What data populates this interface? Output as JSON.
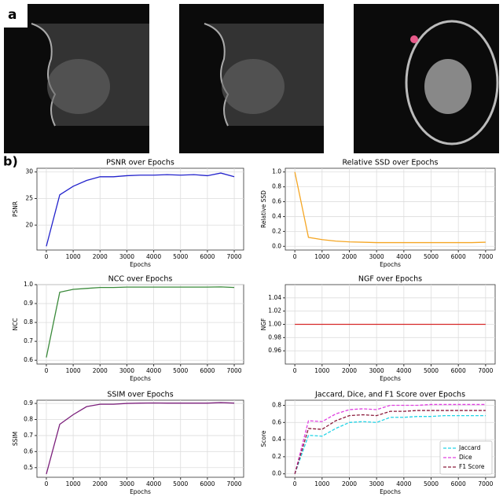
{
  "panel_labels": [
    "a",
    "b)"
  ],
  "chart_data": [
    {
      "type": "line",
      "title": "PSNR over Epochs",
      "xlabel": "Epochs",
      "ylabel": "PSNR",
      "x": [
        0,
        500,
        1000,
        1500,
        2000,
        2500,
        3000,
        3500,
        4000,
        4500,
        5000,
        5500,
        6000,
        6500,
        7000
      ],
      "values": [
        16,
        25.7,
        27.3,
        28.4,
        29.1,
        29.1,
        29.3,
        29.4,
        29.4,
        29.5,
        29.4,
        29.5,
        29.3,
        29.8,
        29.1
      ],
      "color": "#2222cc",
      "xlim": [
        -350,
        7350
      ],
      "xticks": [
        0,
        1000,
        2000,
        3000,
        4000,
        5000,
        6000,
        7000
      ],
      "ylim": [
        15.3,
        30.7
      ],
      "yticks": [
        20,
        25,
        30
      ],
      "grid": true
    },
    {
      "type": "line",
      "title": "Relative SSD over Epochs",
      "xlabel": "Epochs",
      "ylabel": "Relative SSD",
      "x": [
        0,
        500,
        1000,
        1500,
        2000,
        2500,
        3000,
        3500,
        4000,
        4500,
        5000,
        5500,
        6000,
        6500,
        7000
      ],
      "values": [
        1.0,
        0.12,
        0.09,
        0.07,
        0.06,
        0.055,
        0.05,
        0.05,
        0.05,
        0.05,
        0.05,
        0.05,
        0.05,
        0.05,
        0.055
      ],
      "color": "#f5a623",
      "xlim": [
        -350,
        7350
      ],
      "xticks": [
        0,
        1000,
        2000,
        3000,
        4000,
        5000,
        6000,
        7000
      ],
      "ylim": [
        -0.05,
        1.05
      ],
      "yticks": [
        {
          "value": 0,
          "label": "0.0"
        },
        0.2,
        0.4,
        0.6,
        0.8,
        {
          "value": 1,
          "label": "1.0"
        }
      ],
      "grid": true
    },
    {
      "type": "line",
      "title": "NCC over Epochs",
      "xlabel": "Epochs",
      "ylabel": "NCC",
      "x": [
        0,
        500,
        1000,
        1500,
        2000,
        2500,
        3000,
        3500,
        4000,
        4500,
        5000,
        5500,
        6000,
        6500,
        7000
      ],
      "values": [
        0.615,
        0.96,
        0.975,
        0.98,
        0.985,
        0.985,
        0.987,
        0.987,
        0.987,
        0.987,
        0.987,
        0.987,
        0.987,
        0.988,
        0.985
      ],
      "color": "#3a8a3a",
      "xlim": [
        -350,
        7350
      ],
      "xticks": [
        0,
        1000,
        2000,
        3000,
        4000,
        5000,
        6000,
        7000
      ],
      "ylim": [
        0.58,
        1.0
      ],
      "yticks": [
        0.6,
        0.7,
        0.8,
        0.9,
        {
          "value": 1,
          "label": "1.0"
        }
      ],
      "grid": true
    },
    {
      "type": "line",
      "title": "NGF over Epochs",
      "xlabel": "Epochs",
      "ylabel": "NGF",
      "x": [
        0,
        500,
        1000,
        1500,
        2000,
        2500,
        3000,
        3500,
        4000,
        4500,
        5000,
        5500,
        6000,
        6500,
        7000
      ],
      "values": [
        1,
        1,
        1,
        1,
        1,
        1,
        1,
        1,
        1,
        1,
        1,
        1,
        1,
        1,
        1
      ],
      "color": "#d62728",
      "xlim": [
        -350,
        7350
      ],
      "xticks": [
        0,
        1000,
        2000,
        3000,
        4000,
        5000,
        6000,
        7000
      ],
      "ylim": [
        0.94,
        1.06
      ],
      "yticks": [
        0.96,
        0.98,
        {
          "value": 1,
          "label": "1.00"
        },
        1.02,
        1.04
      ],
      "grid": true
    },
    {
      "type": "line",
      "title": "SSIM over Epochs",
      "xlabel": "Epochs",
      "ylabel": "SSIM",
      "x": [
        0,
        500,
        1000,
        1500,
        2000,
        2500,
        3000,
        3500,
        4000,
        4500,
        5000,
        5500,
        6000,
        6500,
        7000
      ],
      "values": [
        0.46,
        0.77,
        0.83,
        0.88,
        0.895,
        0.895,
        0.9,
        0.902,
        0.903,
        0.902,
        0.902,
        0.902,
        0.902,
        0.905,
        0.902
      ],
      "color": "#7b1f7b",
      "xlim": [
        -350,
        7350
      ],
      "xticks": [
        0,
        1000,
        2000,
        3000,
        4000,
        5000,
        6000,
        7000
      ],
      "ylim": [
        0.44,
        0.92
      ],
      "yticks": [
        0.5,
        0.6,
        0.7,
        0.8,
        0.9
      ],
      "grid": true
    },
    {
      "type": "line",
      "title": "Jaccard, Dice, and F1 Score over Epochs",
      "xlabel": "Epochs",
      "ylabel": "Score",
      "x": [
        0,
        500,
        1000,
        1500,
        2000,
        2500,
        3000,
        3500,
        4000,
        4500,
        5000,
        5500,
        6000,
        6500,
        7000
      ],
      "series": [
        {
          "name": "Jaccard",
          "color": "#22d3e6",
          "linestyle": "dashed",
          "values": [
            0,
            0.45,
            0.44,
            0.53,
            0.6,
            0.61,
            0.6,
            0.66,
            0.66,
            0.67,
            0.67,
            0.68,
            0.68,
            0.68,
            0.68
          ]
        },
        {
          "name": "Dice",
          "color": "#e040e0",
          "linestyle": "dashed",
          "values": [
            0,
            0.62,
            0.61,
            0.7,
            0.75,
            0.76,
            0.75,
            0.8,
            0.8,
            0.8,
            0.81,
            0.81,
            0.81,
            0.81,
            0.81
          ]
        },
        {
          "name": "F1 Score",
          "color": "#8b1a3a",
          "linestyle": "dashed",
          "values": [
            0,
            0.53,
            0.52,
            0.62,
            0.68,
            0.69,
            0.68,
            0.73,
            0.73,
            0.74,
            0.74,
            0.74,
            0.74,
            0.74,
            0.74
          ]
        }
      ],
      "xlim": [
        -350,
        7350
      ],
      "xticks": [
        0,
        1000,
        2000,
        3000,
        4000,
        5000,
        6000,
        7000
      ],
      "ylim": [
        -0.04,
        0.86
      ],
      "yticks": [
        {
          "value": 0,
          "label": "0.0"
        },
        0.2,
        0.4,
        0.6,
        0.8
      ],
      "grid": true,
      "legend": "lower right"
    }
  ]
}
